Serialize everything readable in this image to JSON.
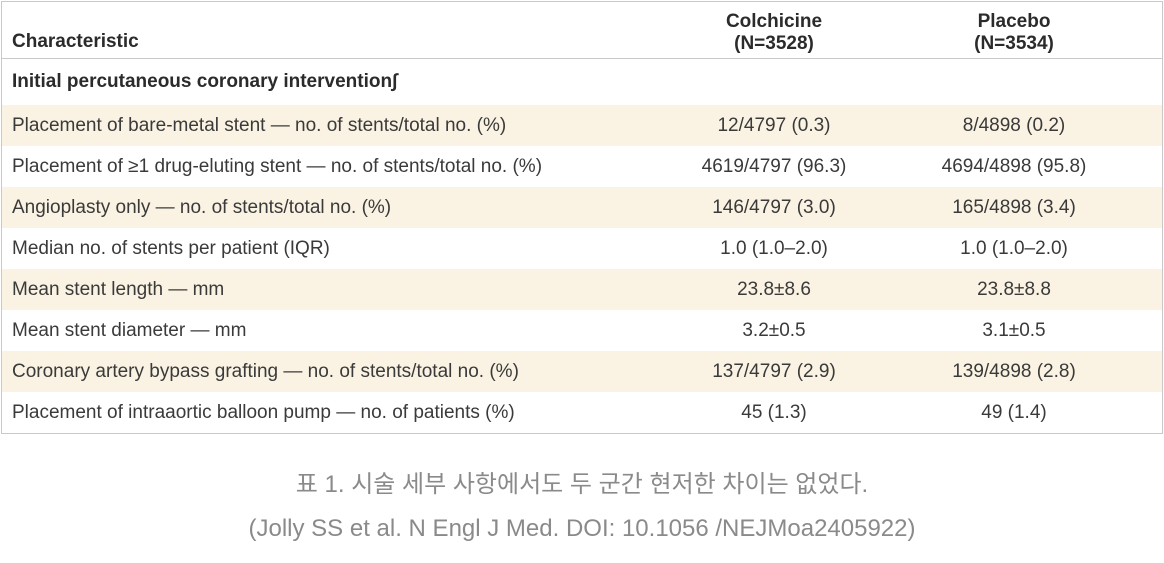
{
  "table": {
    "columns": [
      {
        "label": "Characteristic"
      },
      {
        "name": "Colchicine",
        "n": "(N=3528)"
      },
      {
        "name": "Placebo",
        "n": "(N=3534)"
      }
    ],
    "section_header": "Initial percutaneous coronary intervention∫",
    "rows": [
      {
        "label": "Placement of bare-metal stent — no. of stents/total no. (%)",
        "colchicine": "12/4797 (0.3)",
        "placebo": "8/4898 (0.2)"
      },
      {
        "label": "Placement of ≥1 drug-eluting stent — no. of stents/total no. (%)",
        "colchicine": "4619/4797 (96.3)",
        "placebo": "4694/4898 (95.8)"
      },
      {
        "label": "Angioplasty only — no. of stents/total no. (%)",
        "colchicine": "146/4797 (3.0)",
        "placebo": "165/4898 (3.4)"
      },
      {
        "label": "Median no. of stents per patient (IQR)",
        "colchicine": "1.0 (1.0–2.0)",
        "placebo": "1.0 (1.0–2.0)"
      },
      {
        "label": "Mean stent length — mm",
        "colchicine": "23.8±8.6",
        "placebo": "23.8±8.8"
      },
      {
        "label": "Mean stent diameter — mm",
        "colchicine": "3.2±0.5",
        "placebo": "3.1±0.5"
      },
      {
        "label": "Coronary artery bypass grafting — no. of stents/total no. (%)",
        "colchicine": "137/4797 (2.9)",
        "placebo": "139/4898 (2.8)"
      },
      {
        "label": "Placement of intraaortic balloon pump — no. of patients (%)",
        "colchicine": "45 (1.3)",
        "placebo": "49 (1.4)"
      }
    ]
  },
  "caption": {
    "line1": "표 1. 시술 세부 사항에서도 두 군간 현저한 차이는 없었다.",
    "line2": "(Jolly SS et al. N Engl J Med. DOI: 10.1056 /NEJMoa2405922)"
  },
  "colors": {
    "row_stripe": "#faf3e3",
    "table_border": "#c9c9c9",
    "table_text": "#3a3a3a",
    "header_text": "#2b2b2b",
    "caption_text": "#8a8a8a"
  }
}
